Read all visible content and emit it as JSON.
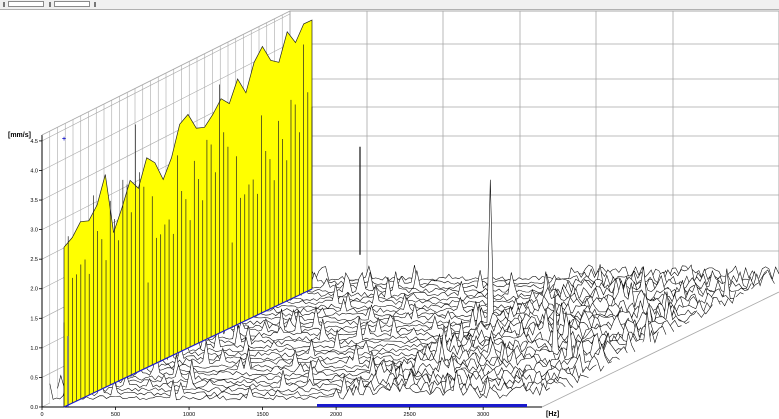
{
  "toolbar": {
    "controls": [
      "field",
      "field",
      "dropdown"
    ]
  },
  "chart_data": {
    "type": "waterfall-3d",
    "xlabel": "[Hz]",
    "ylabel": "[mm/s]",
    "x_ticks": [
      "0",
      "500",
      "1000",
      "1500",
      "2000",
      "2500",
      "3000"
    ],
    "y_ticks": [
      "0.0",
      "0.5",
      "1.0",
      "1.5",
      "2.0",
      "2.5",
      "3.0",
      "3.5",
      "4.0",
      "4.5"
    ],
    "xlim": [
      0,
      3400
    ],
    "ylim": [
      0,
      4.6
    ],
    "depth_slices": 32,
    "grid": true,
    "colors": {
      "background": "#ffffff",
      "grid": "#a8a8a8",
      "spectrum_line": "#000000",
      "highlight_fill": "#ffff00",
      "highlight_line": "#222222",
      "marker": "#2020cc",
      "frame": "#000000"
    },
    "highlight": {
      "description_hidden": true,
      "envelope_values": [
        2.7,
        2.8,
        3.0,
        2.95,
        3.15,
        3.6,
        2.55,
        2.9,
        3.3,
        3.1,
        3.55,
        3.4,
        3.05,
        3.35,
        3.85,
        3.95,
        3.65,
        3.6,
        3.75,
        3.95,
        3.8,
        4.15,
        3.85,
        4.3,
        4.5,
        4.2,
        4.1,
        4.55,
        4.3,
        4.55,
        4.55
      ],
      "slice_peak_values": [
        2.6,
        3.3,
        2.9,
        3.6,
        2.5,
        3.0,
        3.2,
        3.5,
        3.3,
        3.7,
        3.9,
        3.6,
        3.8,
        4.0,
        3.7,
        4.2,
        4.3,
        4.4,
        4.1,
        4.5
      ]
    },
    "notable_peaks": [
      {
        "x": 2000,
        "slice": 20,
        "value": 2.5
      },
      {
        "x": 2850,
        "slice": 12,
        "value": 1.1
      },
      {
        "x": 3050,
        "slice": 10,
        "value": 0.8
      }
    ]
  }
}
